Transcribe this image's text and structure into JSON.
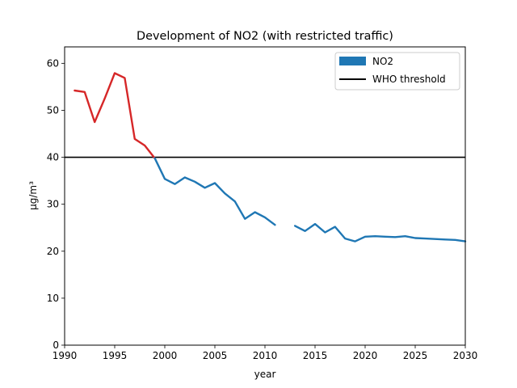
{
  "chart_data": {
    "type": "line",
    "title": "Development of NO2 (with restricted traffic)",
    "xlabel": "year",
    "ylabel": "µg/m³",
    "xlim": [
      1990,
      2030
    ],
    "ylim": [
      0,
      63.5
    ],
    "xticks": [
      1990,
      1995,
      2000,
      2005,
      2010,
      2015,
      2020,
      2025,
      2030
    ],
    "yticks": [
      0,
      10,
      20,
      30,
      40,
      50,
      60
    ],
    "grid": false,
    "legend_position": "top-right",
    "threshold": {
      "name": "WHO threshold",
      "y": 40,
      "color": "#000000"
    },
    "series": [
      {
        "name": "NO2",
        "color": "#1f77b4",
        "legend_swatch": "patch",
        "segments": [
          {
            "color": "#d62728",
            "points": [
              [
                1991,
                54.2
              ],
              [
                1992,
                53.9
              ],
              [
                1993,
                47.5
              ],
              [
                1994,
                52.5
              ],
              [
                1995,
                57.9
              ],
              [
                1996,
                56.9
              ],
              [
                1997,
                43.9
              ],
              [
                1998,
                42.5
              ],
              [
                1999,
                39.8
              ]
            ]
          },
          {
            "color": "#1f77b4",
            "points": [
              [
                1999,
                39.8
              ],
              [
                2000,
                35.4
              ],
              [
                2001,
                34.3
              ],
              [
                2002,
                35.7
              ],
              [
                2003,
                34.8
              ],
              [
                2004,
                33.5
              ],
              [
                2005,
                34.5
              ],
              [
                2006,
                32.3
              ],
              [
                2007,
                30.6
              ],
              [
                2008,
                26.9
              ],
              [
                2009,
                28.3
              ],
              [
                2010,
                27.2
              ],
              [
                2011,
                25.6
              ]
            ]
          },
          {
            "color": "#1f77b4",
            "points": [
              [
                2013,
                25.4
              ],
              [
                2014,
                24.3
              ],
              [
                2015,
                25.8
              ],
              [
                2016,
                24.0
              ],
              [
                2017,
                25.2
              ],
              [
                2018,
                22.7
              ],
              [
                2019,
                22.1
              ],
              [
                2020,
                23.1
              ],
              [
                2021,
                23.2
              ],
              [
                2022,
                23.1
              ],
              [
                2023,
                23.0
              ],
              [
                2024,
                23.2
              ],
              [
                2025,
                22.8
              ],
              [
                2026,
                22.7
              ],
              [
                2027,
                22.6
              ],
              [
                2028,
                22.5
              ],
              [
                2029,
                22.4
              ],
              [
                2030,
                22.1
              ]
            ]
          }
        ]
      }
    ]
  }
}
